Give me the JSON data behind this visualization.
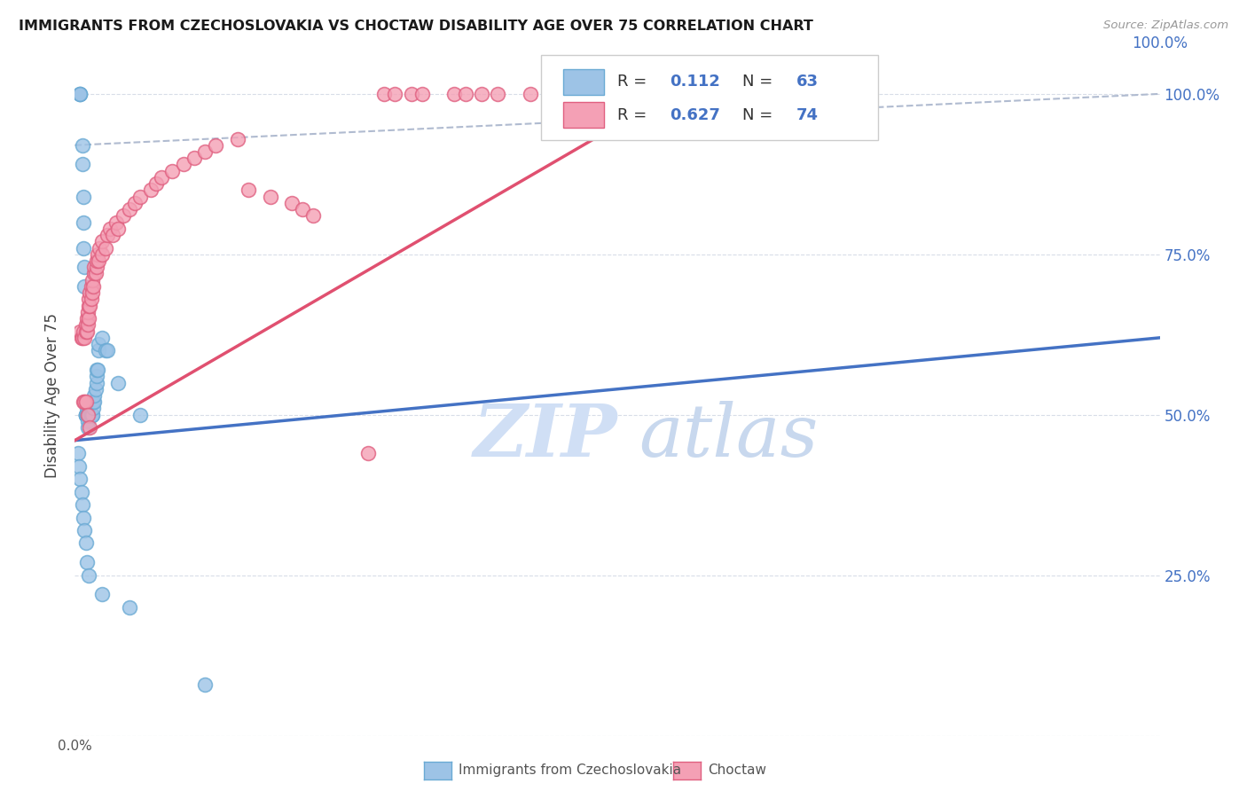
{
  "title": "IMMIGRANTS FROM CZECHOSLOVAKIA VS CHOCTAW DISABILITY AGE OVER 75 CORRELATION CHART",
  "source": "Source: ZipAtlas.com",
  "ylabel": "Disability Age Over 75",
  "ytick_values": [
    0.0,
    0.25,
    0.5,
    0.75,
    1.0
  ],
  "ytick_labels": [
    "0.0%",
    "25.0%",
    "50.0%",
    "75.0%",
    "100.0%"
  ],
  "legend_label1": "Immigrants from Czechoslovakia",
  "legend_label2": "Choctaw",
  "R1": "0.112",
  "N1": "63",
  "R2": "0.627",
  "N2": "74",
  "color_blue": "#9dc3e6",
  "color_blue_edge": "#6aaad4",
  "color_pink": "#f4a0b5",
  "color_pink_edge": "#e06080",
  "color_line_blue": "#4472c4",
  "color_line_pink": "#e05070",
  "color_dashed": "#b0bbd0",
  "watermark_zip_color": "#d0dff5",
  "watermark_atlas_color": "#c8d8ee",
  "blue_x": [
    0.005,
    0.005,
    0.005,
    0.007,
    0.007,
    0.008,
    0.008,
    0.008,
    0.009,
    0.009,
    0.01,
    0.01,
    0.01,
    0.01,
    0.01,
    0.011,
    0.011,
    0.011,
    0.012,
    0.012,
    0.012,
    0.012,
    0.013,
    0.013,
    0.013,
    0.013,
    0.014,
    0.014,
    0.014,
    0.015,
    0.015,
    0.015,
    0.016,
    0.016,
    0.017,
    0.017,
    0.018,
    0.018,
    0.019,
    0.02,
    0.02,
    0.02,
    0.021,
    0.022,
    0.022,
    0.025,
    0.028,
    0.03,
    0.04,
    0.06,
    0.003,
    0.004,
    0.005,
    0.006,
    0.007,
    0.008,
    0.009,
    0.01,
    0.011,
    0.013,
    0.025,
    0.05,
    0.12
  ],
  "blue_y": [
    1.0,
    1.0,
    1.0,
    0.92,
    0.89,
    0.84,
    0.8,
    0.76,
    0.73,
    0.7,
    0.5,
    0.5,
    0.5,
    0.5,
    0.5,
    0.5,
    0.51,
    0.5,
    0.5,
    0.5,
    0.49,
    0.48,
    0.5,
    0.5,
    0.5,
    0.5,
    0.5,
    0.5,
    0.5,
    0.5,
    0.5,
    0.5,
    0.5,
    0.5,
    0.51,
    0.52,
    0.52,
    0.53,
    0.54,
    0.55,
    0.56,
    0.57,
    0.57,
    0.6,
    0.61,
    0.62,
    0.6,
    0.6,
    0.55,
    0.5,
    0.44,
    0.42,
    0.4,
    0.38,
    0.36,
    0.34,
    0.32,
    0.3,
    0.27,
    0.25,
    0.22,
    0.2,
    0.08
  ],
  "pink_x": [
    0.005,
    0.006,
    0.007,
    0.008,
    0.009,
    0.01,
    0.01,
    0.011,
    0.011,
    0.012,
    0.012,
    0.013,
    0.013,
    0.013,
    0.014,
    0.014,
    0.015,
    0.015,
    0.016,
    0.016,
    0.017,
    0.018,
    0.018,
    0.019,
    0.02,
    0.02,
    0.021,
    0.022,
    0.023,
    0.025,
    0.025,
    0.028,
    0.03,
    0.032,
    0.035,
    0.038,
    0.04,
    0.045,
    0.05,
    0.055,
    0.06,
    0.07,
    0.075,
    0.08,
    0.09,
    0.1,
    0.11,
    0.12,
    0.13,
    0.15,
    0.16,
    0.18,
    0.2,
    0.21,
    0.22,
    0.008,
    0.009,
    0.01,
    0.012,
    0.014,
    0.27,
    0.285,
    0.295,
    0.31,
    0.32,
    0.35,
    0.36,
    0.375,
    0.39,
    0.42,
    0.44,
    0.46,
    0.49,
    0.5
  ],
  "pink_y": [
    0.63,
    0.62,
    0.62,
    0.63,
    0.62,
    0.63,
    0.64,
    0.63,
    0.65,
    0.64,
    0.66,
    0.65,
    0.67,
    0.68,
    0.67,
    0.69,
    0.68,
    0.7,
    0.69,
    0.71,
    0.7,
    0.72,
    0.73,
    0.72,
    0.73,
    0.74,
    0.75,
    0.74,
    0.76,
    0.75,
    0.77,
    0.76,
    0.78,
    0.79,
    0.78,
    0.8,
    0.79,
    0.81,
    0.82,
    0.83,
    0.84,
    0.85,
    0.86,
    0.87,
    0.88,
    0.89,
    0.9,
    0.91,
    0.92,
    0.93,
    0.85,
    0.84,
    0.83,
    0.82,
    0.81,
    0.52,
    0.52,
    0.52,
    0.5,
    0.48,
    0.44,
    1.0,
    1.0,
    1.0,
    1.0,
    1.0,
    1.0,
    1.0,
    1.0,
    1.0,
    1.0,
    1.0,
    1.0,
    1.0
  ],
  "blue_line": [
    0.0,
    1.0,
    0.46,
    0.62
  ],
  "pink_line": [
    0.0,
    0.55,
    0.46,
    1.0
  ],
  "dashed_line": [
    0.0,
    1.0,
    0.92,
    1.0
  ],
  "xlim": [
    0.0,
    1.0
  ],
  "ylim": [
    0.0,
    1.06
  ]
}
